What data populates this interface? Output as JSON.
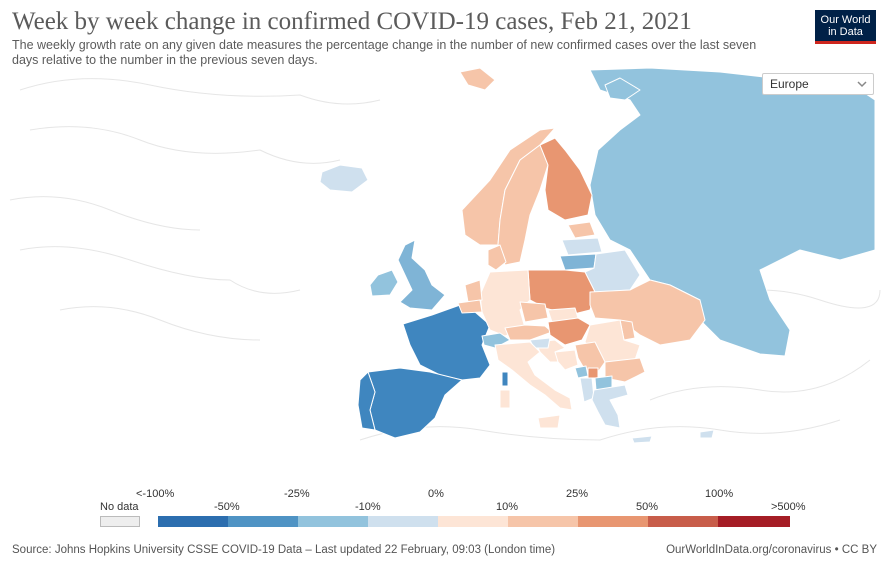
{
  "header": {
    "title": "Week by week change in confirmed COVID-19 cases, Feb 21, 2021",
    "subtitle": "The weekly growth rate on any given date measures the percentage change in the number of new confirmed cases over the last seven days relative to the number in the previous seven days."
  },
  "logo": {
    "line1": "Our World",
    "line2": "in Data"
  },
  "controls": {
    "region_selected": "Europe",
    "region_icon": "chevron-down-icon"
  },
  "legend": {
    "top_labels": [
      "<-100%",
      "-25%",
      "0%",
      "25%",
      "100%"
    ],
    "bottom_labels": [
      "No data",
      "-50%",
      "-10%",
      "10%",
      "50%",
      ">500%"
    ],
    "bins": [
      {
        "color": "#2c6eaf"
      },
      {
        "color": "#4f93c4"
      },
      {
        "color": "#92c3dd"
      },
      {
        "color": "#cfe0ee"
      },
      {
        "color": "#fde5d6"
      },
      {
        "color": "#f6c5a9"
      },
      {
        "color": "#e89671"
      },
      {
        "color": "#c85d4a"
      },
      {
        "color": "#a51d25"
      }
    ],
    "no_data_color": "#eeeeee"
  },
  "footer": {
    "source": "Source: Johns Hopkins University CSSE COVID-19 Data – Last updated 22 February, 09:03 (London time)",
    "license": "OurWorldInData.org/coronavirus • CC BY"
  },
  "countries": [
    {
      "name": "Russia",
      "color": "#92c3dd"
    },
    {
      "name": "France",
      "color": "#3f86bf"
    },
    {
      "name": "Spain",
      "color": "#3f86bf"
    },
    {
      "name": "Portugal",
      "color": "#3f86bf"
    },
    {
      "name": "United Kingdom",
      "color": "#7fb4d6"
    },
    {
      "name": "Ireland",
      "color": "#92c3dd"
    },
    {
      "name": "Iceland",
      "color": "#cfe0ee"
    },
    {
      "name": "Norway",
      "color": "#f6c5a9"
    },
    {
      "name": "Sweden",
      "color": "#f6c5a9"
    },
    {
      "name": "Finland",
      "color": "#e89671"
    },
    {
      "name": "Estonia",
      "color": "#f6c5a9"
    },
    {
      "name": "Latvia",
      "color": "#cfe0ee"
    },
    {
      "name": "Lithuania",
      "color": "#7fb4d6"
    },
    {
      "name": "Belarus",
      "color": "#cfe0ee"
    },
    {
      "name": "Poland",
      "color": "#e89671"
    },
    {
      "name": "Germany",
      "color": "#fde5d6"
    },
    {
      "name": "Denmark",
      "color": "#f6c5a9"
    },
    {
      "name": "Netherlands",
      "color": "#f6c5a9"
    },
    {
      "name": "Belgium",
      "color": "#f6c5a9"
    },
    {
      "name": "Switzerland",
      "color": "#92c3dd"
    },
    {
      "name": "Austria",
      "color": "#f6c5a9"
    },
    {
      "name": "Czechia",
      "color": "#f6c5a9"
    },
    {
      "name": "Slovakia",
      "color": "#fde5d6"
    },
    {
      "name": "Hungary",
      "color": "#e89671"
    },
    {
      "name": "Ukraine",
      "color": "#f6c5a9"
    },
    {
      "name": "Moldova",
      "color": "#f6c5a9"
    },
    {
      "name": "Romania",
      "color": "#fde5d6"
    },
    {
      "name": "Bulgaria",
      "color": "#f6c5a9"
    },
    {
      "name": "Serbia",
      "color": "#f6c5a9"
    },
    {
      "name": "Croatia",
      "color": "#fde5d6"
    },
    {
      "name": "Slovenia",
      "color": "#cfe0ee"
    },
    {
      "name": "Bosnia and Herzegovina",
      "color": "#fde5d6"
    },
    {
      "name": "Montenegro",
      "color": "#92c3dd"
    },
    {
      "name": "Kosovo",
      "color": "#e89671"
    },
    {
      "name": "North Macedonia",
      "color": "#92c3dd"
    },
    {
      "name": "Albania",
      "color": "#cfe0ee"
    },
    {
      "name": "Greece",
      "color": "#cfe0ee"
    },
    {
      "name": "Italy",
      "color": "#fde5d6"
    },
    {
      "name": "Sardinia",
      "color": "#fde5d6"
    },
    {
      "name": "Corsica",
      "color": "#3f86bf"
    },
    {
      "name": "Sicily",
      "color": "#fde5d6"
    },
    {
      "name": "Svalbard",
      "color": "#f6c5a9"
    },
    {
      "name": "Novaya Zemlya",
      "color": "#92c3dd"
    },
    {
      "name": "Crete",
      "color": "#cfe0ee"
    },
    {
      "name": "Cyprus",
      "color": "#cfe0ee"
    }
  ]
}
